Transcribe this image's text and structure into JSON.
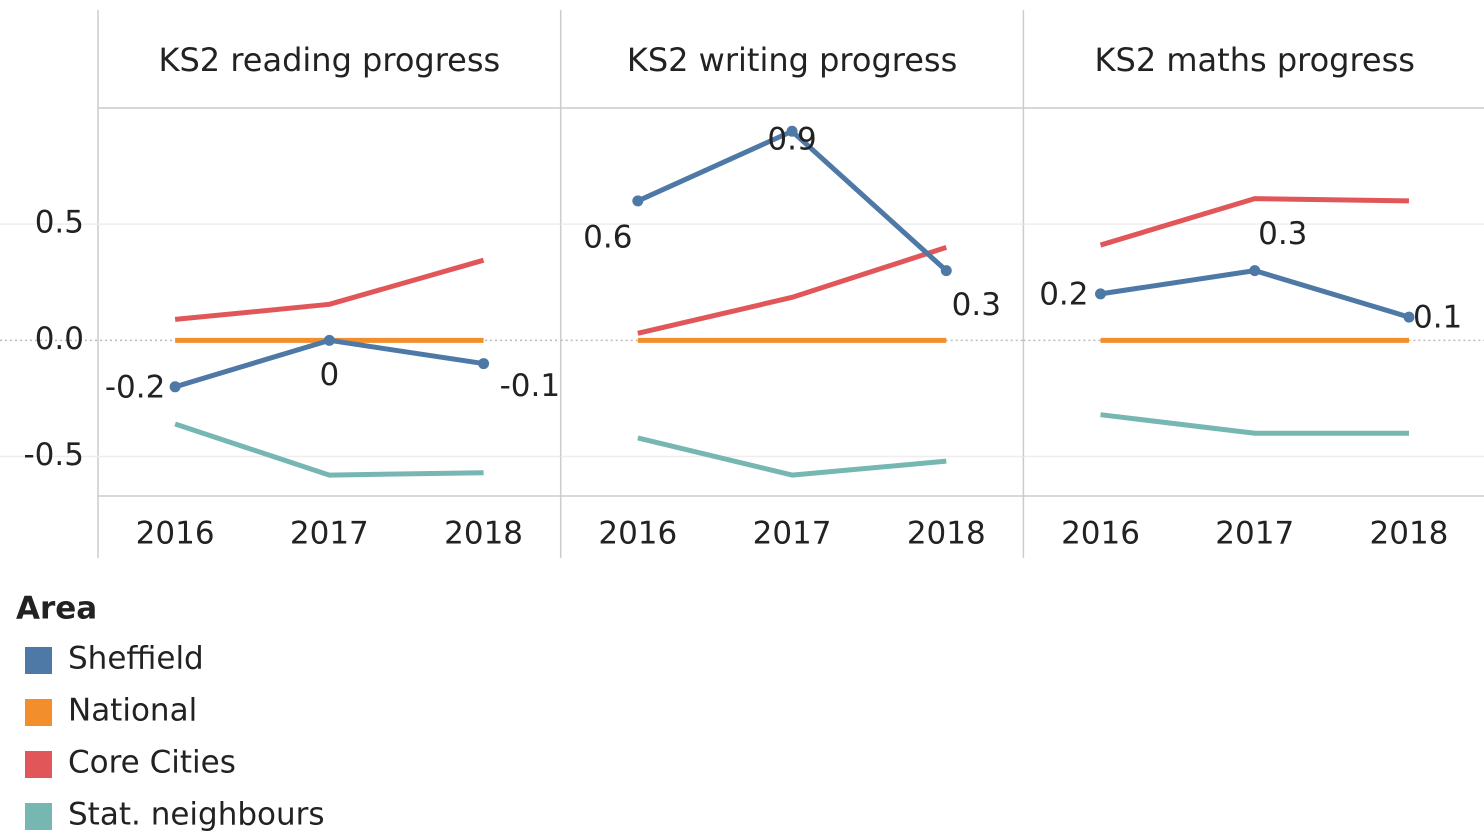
{
  "chart_data": [
    {
      "type": "line",
      "title": "KS2 reading progress",
      "legend_title": "Area",
      "categories": [
        "2016",
        "2017",
        "2018"
      ],
      "ylim": [
        -0.67,
        1.0
      ],
      "yticks": [
        -0.5,
        {
          "value": 0,
          "label": "0.0"
        },
        0.5
      ],
      "series": [
        {
          "name": "Sheffield",
          "color": "#4e79a7",
          "values": [
            -0.2,
            0,
            -0.1
          ],
          "labels": true
        },
        {
          "name": "National",
          "color": "#f28e2b",
          "values": [
            0,
            0,
            0
          ]
        },
        {
          "name": "Core Cities",
          "color": "#e15759",
          "values": [
            0.09,
            0.155,
            0.345
          ]
        },
        {
          "name": "Stat. neighbours",
          "color": "#76b7b2",
          "values": [
            -0.36,
            -0.58,
            -0.57
          ]
        }
      ]
    },
    {
      "type": "line",
      "title": "KS2 writing progress",
      "categories": [
        "2016",
        "2017",
        "2018"
      ],
      "ylim": [
        -0.67,
        1.0
      ],
      "yticks": [
        -0.5,
        {
          "value": 0,
          "label": "0.0"
        },
        0.5
      ],
      "series": [
        {
          "name": "Sheffield",
          "color": "#4e79a7",
          "values": [
            0.6,
            0.9,
            0.3
          ],
          "labels": true
        },
        {
          "name": "National",
          "color": "#f28e2b",
          "values": [
            0,
            0,
            0
          ]
        },
        {
          "name": "Core Cities",
          "color": "#e15759",
          "values": [
            0.03,
            0.185,
            0.4
          ]
        },
        {
          "name": "Stat. neighbours",
          "color": "#76b7b2",
          "values": [
            -0.42,
            -0.58,
            -0.52
          ]
        }
      ]
    },
    {
      "type": "line",
      "title": "KS2 maths progress",
      "categories": [
        "2016",
        "2017",
        "2018"
      ],
      "ylim": [
        -0.67,
        1.0
      ],
      "yticks": [
        -0.5,
        {
          "value": 0,
          "label": "0.0"
        },
        0.5
      ],
      "series": [
        {
          "name": "Sheffield",
          "color": "#4e79a7",
          "values": [
            0.2,
            0.3,
            0.1
          ],
          "labels": true
        },
        {
          "name": "National",
          "color": "#f28e2b",
          "values": [
            0,
            0,
            0
          ]
        },
        {
          "name": "Core Cities",
          "color": "#e15759",
          "values": [
            0.41,
            0.61,
            0.6
          ]
        },
        {
          "name": "Stat. neighbours",
          "color": "#76b7b2",
          "values": [
            -0.32,
            -0.4,
            -0.4
          ]
        }
      ]
    }
  ]
}
